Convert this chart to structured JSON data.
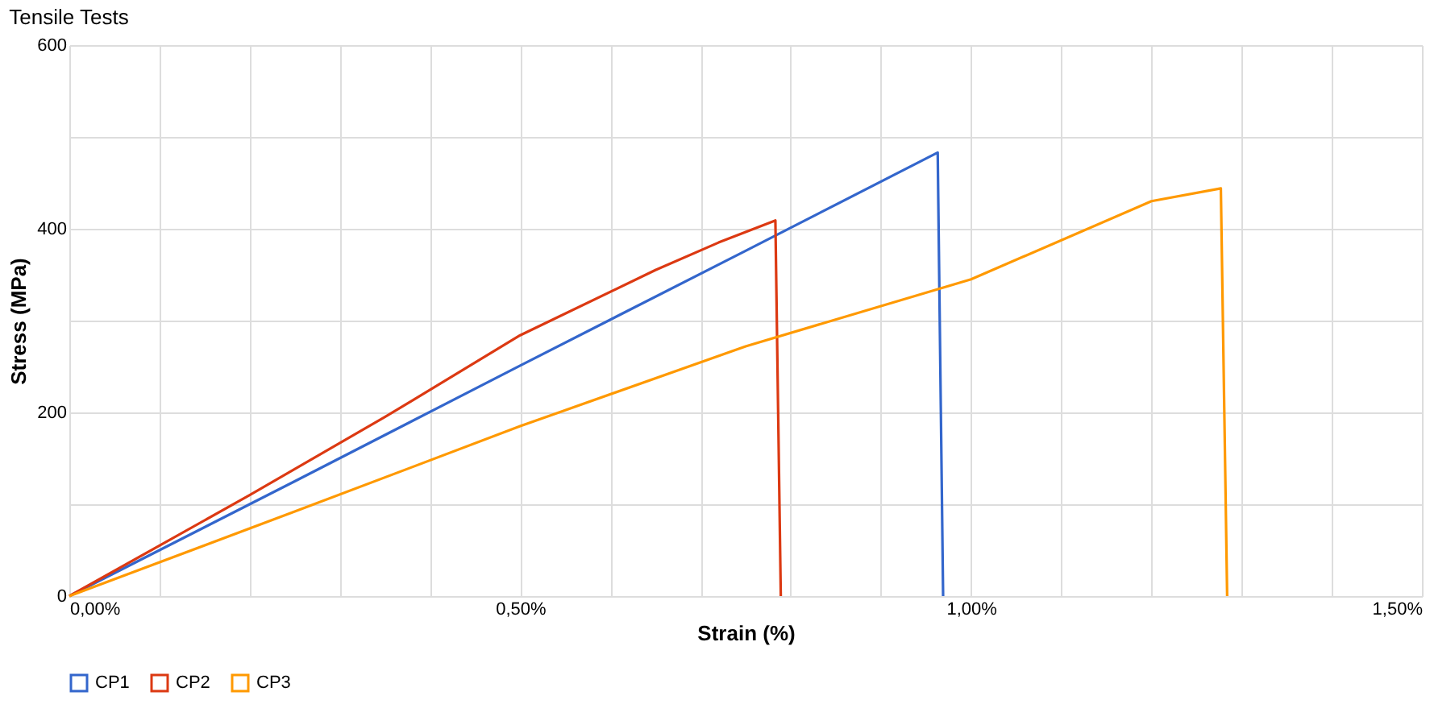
{
  "chart_data": {
    "type": "line",
    "title": "Tensile Tests",
    "xlabel": "Strain (%)",
    "ylabel": "Stress (MPa)",
    "xlim": [
      0,
      1.5
    ],
    "ylim": [
      0,
      600
    ],
    "xticks": [
      {
        "value": 0,
        "label": "0,00%"
      },
      {
        "value": 0.1,
        "label": null
      },
      {
        "value": 0.2,
        "label": null
      },
      {
        "value": 0.3,
        "label": null
      },
      {
        "value": 0.4,
        "label": null
      },
      {
        "value": 0.5,
        "label": "0,50%"
      },
      {
        "value": 0.6,
        "label": null
      },
      {
        "value": 0.7,
        "label": null
      },
      {
        "value": 0.8,
        "label": null
      },
      {
        "value": 0.9,
        "label": null
      },
      {
        "value": 1.0,
        "label": "1,00%"
      },
      {
        "value": 1.1,
        "label": null
      },
      {
        "value": 1.2,
        "label": null
      },
      {
        "value": 1.3,
        "label": null
      },
      {
        "value": 1.4,
        "label": null
      },
      {
        "value": 1.5,
        "label": "1,50%"
      }
    ],
    "yticks": [
      0,
      {
        "value": 100,
        "label": null
      },
      200,
      {
        "value": 300,
        "label": null
      },
      400,
      {
        "value": 500,
        "label": null
      },
      600
    ],
    "grid": true,
    "legend": "bottom",
    "marker": "none",
    "line_style": "solid",
    "series": [
      {
        "name": "CP1",
        "color": "#3366cc",
        "x": [
          0,
          0.25,
          0.5,
          0.75,
          0.963,
          0.969
        ],
        "values": [
          0,
          125,
          251,
          376,
          483,
          0
        ]
      },
      {
        "name": "CP2",
        "color": "#dc3912",
        "x": [
          0,
          0.2,
          0.35,
          0.5,
          0.65,
          0.72,
          0.783,
          0.789
        ],
        "values": [
          0,
          110,
          195,
          284,
          355,
          385,
          409,
          0
        ]
      },
      {
        "name": "CP3",
        "color": "#ff9900",
        "x": [
          0,
          0.25,
          0.5,
          0.75,
          1.0,
          1.2,
          1.277,
          1.284
        ],
        "values": [
          0,
          92,
          185,
          272,
          345,
          430,
          444,
          0
        ]
      }
    ]
  }
}
